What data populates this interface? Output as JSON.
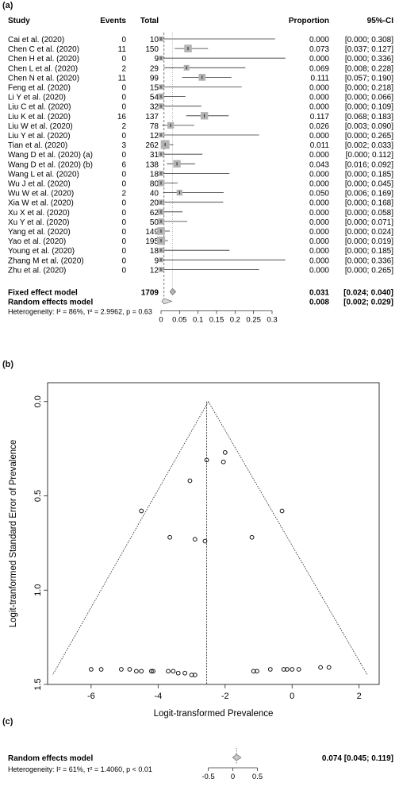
{
  "panels": {
    "a": "(a)",
    "b": "(b)",
    "c": "(c)"
  },
  "forest": {
    "headers": {
      "study": "Study",
      "events": "Events",
      "total": "Total",
      "proportion": "Proportion",
      "ci": "95%-CI"
    },
    "fixed": {
      "label": "Fixed effect model",
      "total": "1709",
      "value": 0.031,
      "lower": 0.024,
      "upper": 0.04,
      "proportion": "0.031",
      "ci": "[0.024; 0.040]"
    },
    "random": {
      "label": "Random effects model",
      "value": 0.008,
      "lower": 0.002,
      "upper": 0.029,
      "proportion": "0.008",
      "ci": "[0.002; 0.029]"
    },
    "heterogeneity": "Heterogeneity: I² = 86%, τ² = 2.9962, p = 0.63",
    "axis_ticks": [
      "0",
      "0.05",
      "0.1",
      "0.15",
      "0.2",
      "0.25",
      "0.3"
    ],
    "axis_values": [
      0,
      0.05,
      0.1,
      0.15,
      0.2,
      0.25,
      0.3
    ],
    "xlim": [
      0,
      0.3
    ]
  },
  "chart_data": [
    {
      "type": "forest",
      "columns": [
        "Study",
        "Events",
        "Total",
        "Proportion",
        "95%-CI"
      ],
      "studies": [
        {
          "study": "Cai et al. (2020)",
          "events": "0",
          "total": "10",
          "proportion": "0.000",
          "ci": "[0.000; 0.308]",
          "p": 0.0,
          "lo": 0.0,
          "hi": 0.308
        },
        {
          "study": "Chen C et al. (2020)",
          "events": "11",
          "total": "150",
          "proportion": "0.073",
          "ci": "[0.037; 0.127]",
          "p": 0.073,
          "lo": 0.037,
          "hi": 0.127
        },
        {
          "study": "Chen H et al. (2020)",
          "events": "0",
          "total": "9",
          "proportion": "0.000",
          "ci": "[0.000; 0.336]",
          "p": 0.0,
          "lo": 0.0,
          "hi": 0.336
        },
        {
          "study": "Chen L et al. (2020)",
          "events": "2",
          "total": "29",
          "proportion": "0.069",
          "ci": "[0.008; 0.228]",
          "p": 0.069,
          "lo": 0.008,
          "hi": 0.228
        },
        {
          "study": "Chen N et al. (2020)",
          "events": "11",
          "total": "99",
          "proportion": "0.111",
          "ci": "[0.057; 0.190]",
          "p": 0.111,
          "lo": 0.057,
          "hi": 0.19
        },
        {
          "study": "Feng et al. (2020)",
          "events": "0",
          "total": "15",
          "proportion": "0.000",
          "ci": "[0.000; 0.218]",
          "p": 0.0,
          "lo": 0.0,
          "hi": 0.218
        },
        {
          "study": "Li Y et al. (2020)",
          "events": "0",
          "total": "54",
          "proportion": "0.000",
          "ci": "[0.000; 0.066]",
          "p": 0.0,
          "lo": 0.0,
          "hi": 0.066
        },
        {
          "study": "Liu C et al. (2020)",
          "events": "0",
          "total": "32",
          "proportion": "0.000",
          "ci": "[0.000; 0.109]",
          "p": 0.0,
          "lo": 0.0,
          "hi": 0.109
        },
        {
          "study": "Liu K et al. (2020)",
          "events": "16",
          "total": "137",
          "proportion": "0.117",
          "ci": "[0.068; 0.183]",
          "p": 0.117,
          "lo": 0.068,
          "hi": 0.183
        },
        {
          "study": "Liu W et al. (2020)",
          "events": "2",
          "total": "78",
          "proportion": "0.026",
          "ci": "[0.003; 0.090]",
          "p": 0.026,
          "lo": 0.003,
          "hi": 0.09
        },
        {
          "study": "Liu Y et al. (2020)",
          "events": "0",
          "total": "12",
          "proportion": "0.000",
          "ci": "[0.000; 0.265]",
          "p": 0.0,
          "lo": 0.0,
          "hi": 0.265
        },
        {
          "study": "Tian et al. (2020)",
          "events": "3",
          "total": "262",
          "proportion": "0.011",
          "ci": "[0.002; 0.033]",
          "p": 0.011,
          "lo": 0.002,
          "hi": 0.033
        },
        {
          "study": "Wang D et al. (2020) (a)",
          "events": "0",
          "total": "31",
          "proportion": "0.000",
          "ci": "[0.000; 0.112]",
          "p": 0.0,
          "lo": 0.0,
          "hi": 0.112
        },
        {
          "study": "Wang D et al. (2020) (b)",
          "events": "6",
          "total": "138",
          "proportion": "0.043",
          "ci": "[0.016; 0.092]",
          "p": 0.043,
          "lo": 0.016,
          "hi": 0.092
        },
        {
          "study": "Wang L et al. (2020)",
          "events": "0",
          "total": "18",
          "proportion": "0.000",
          "ci": "[0.000; 0.185]",
          "p": 0.0,
          "lo": 0.0,
          "hi": 0.185
        },
        {
          "study": "Wu J et al. (2020)",
          "events": "0",
          "total": "80",
          "proportion": "0.000",
          "ci": "[0.000; 0.045]",
          "p": 0.0,
          "lo": 0.0,
          "hi": 0.045
        },
        {
          "study": "Wu W et al. (2020)",
          "events": "2",
          "total": "40",
          "proportion": "0.050",
          "ci": "[0.006; 0.169]",
          "p": 0.05,
          "lo": 0.006,
          "hi": 0.169
        },
        {
          "study": "Xia W et al. (2020)",
          "events": "0",
          "total": "20",
          "proportion": "0.000",
          "ci": "[0.000; 0.168]",
          "p": 0.0,
          "lo": 0.0,
          "hi": 0.168
        },
        {
          "study": "Xu X et al. (2020)",
          "events": "0",
          "total": "62",
          "proportion": "0.000",
          "ci": "[0.000; 0.058]",
          "p": 0.0,
          "lo": 0.0,
          "hi": 0.058
        },
        {
          "study": "Xu Y et al. (2020)",
          "events": "0",
          "total": "50",
          "proportion": "0.000",
          "ci": "[0.000; 0.071]",
          "p": 0.0,
          "lo": 0.0,
          "hi": 0.071
        },
        {
          "study": "Yang et al. (2020)",
          "events": "0",
          "total": "149",
          "proportion": "0.000",
          "ci": "[0.000; 0.024]",
          "p": 0.0,
          "lo": 0.0,
          "hi": 0.024
        },
        {
          "study": "Yao et al. (2020)",
          "events": "0",
          "total": "195",
          "proportion": "0.000",
          "ci": "[0.000; 0.019]",
          "p": 0.0,
          "lo": 0.0,
          "hi": 0.019
        },
        {
          "study": "Young et al. (2020)",
          "events": "0",
          "total": "18",
          "proportion": "0.000",
          "ci": "[0.000; 0.185]",
          "p": 0.0,
          "lo": 0.0,
          "hi": 0.185
        },
        {
          "study": "Zhang M et al. (2020)",
          "events": "0",
          "total": "9",
          "proportion": "0.000",
          "ci": "[0.000; 0.336]",
          "p": 0.0,
          "lo": 0.0,
          "hi": 0.336
        },
        {
          "study": "Zhu et al. (2020)",
          "events": "0",
          "total": "12",
          "proportion": "0.000",
          "ci": "[0.000; 0.265]",
          "p": 0.0,
          "lo": 0.0,
          "hi": 0.265
        }
      ]
    },
    {
      "type": "scatter",
      "subtype": "funnel",
      "xlabel": "Logit-transformed Prevalence",
      "ylabel": "Logit-tranformed Standard Error of Prevalence",
      "xlim": [
        -7.3,
        2.6
      ],
      "ylim": [
        1.5,
        -0.1
      ],
      "x_ticks": [
        -6,
        -4,
        -2,
        0,
        2
      ],
      "y_ticks": [
        0.0,
        0.5,
        1.0,
        1.5
      ],
      "x_tick_labels": [
        "-6",
        "-4",
        "-2",
        "0",
        "2"
      ],
      "y_tick_labels": [
        "0.0",
        "0.5",
        "1.0",
        "1.5"
      ],
      "pooled_estimate": -2.55,
      "funnel_apex": [
        -2.5,
        0.0
      ],
      "funnel_left_base": [
        -7.15,
        1.45
      ],
      "funnel_right_base": [
        2.25,
        1.45
      ],
      "points": [
        {
          "x": -2.0,
          "y": 0.27
        },
        {
          "x": -2.05,
          "y": 0.32
        },
        {
          "x": -2.55,
          "y": 0.31
        },
        {
          "x": -3.05,
          "y": 0.42
        },
        {
          "x": -4.5,
          "y": 0.58
        },
        {
          "x": -0.3,
          "y": 0.58
        },
        {
          "x": -3.65,
          "y": 0.72
        },
        {
          "x": -2.9,
          "y": 0.73
        },
        {
          "x": -2.6,
          "y": 0.74
        },
        {
          "x": -1.2,
          "y": 0.72
        },
        {
          "x": -6.0,
          "y": 1.42
        },
        {
          "x": -5.7,
          "y": 1.42
        },
        {
          "x": -5.1,
          "y": 1.42
        },
        {
          "x": -4.85,
          "y": 1.42
        },
        {
          "x": -4.65,
          "y": 1.43
        },
        {
          "x": -4.5,
          "y": 1.43
        },
        {
          "x": -4.2,
          "y": 1.43
        },
        {
          "x": -4.15,
          "y": 1.43
        },
        {
          "x": -3.7,
          "y": 1.43
        },
        {
          "x": -3.55,
          "y": 1.43
        },
        {
          "x": -3.4,
          "y": 1.44
        },
        {
          "x": -3.2,
          "y": 1.44
        },
        {
          "x": -3.0,
          "y": 1.45
        },
        {
          "x": -2.9,
          "y": 1.45
        },
        {
          "x": -1.15,
          "y": 1.43
        },
        {
          "x": -1.05,
          "y": 1.43
        },
        {
          "x": -0.65,
          "y": 1.42
        },
        {
          "x": -0.25,
          "y": 1.42
        },
        {
          "x": -0.15,
          "y": 1.42
        },
        {
          "x": 0.0,
          "y": 1.42
        },
        {
          "x": 0.2,
          "y": 1.42
        },
        {
          "x": 0.85,
          "y": 1.41
        },
        {
          "x": 1.1,
          "y": 1.41
        }
      ]
    },
    {
      "type": "forest",
      "subtype": "summary",
      "label": "Random effects model",
      "heterogeneity": "Heterogeneity: I² = 61%, τ² = 1.4060, p < 0.01",
      "value": 0.074,
      "lower": 0.045,
      "upper": 0.119,
      "summary_text": "0.074  [0.045; 0.119]",
      "xlim": [
        -0.75,
        0.75
      ],
      "ticks": [
        -0.5,
        0,
        0.5
      ],
      "tick_labels": [
        "-0.5",
        "0",
        "0.5"
      ]
    }
  ]
}
